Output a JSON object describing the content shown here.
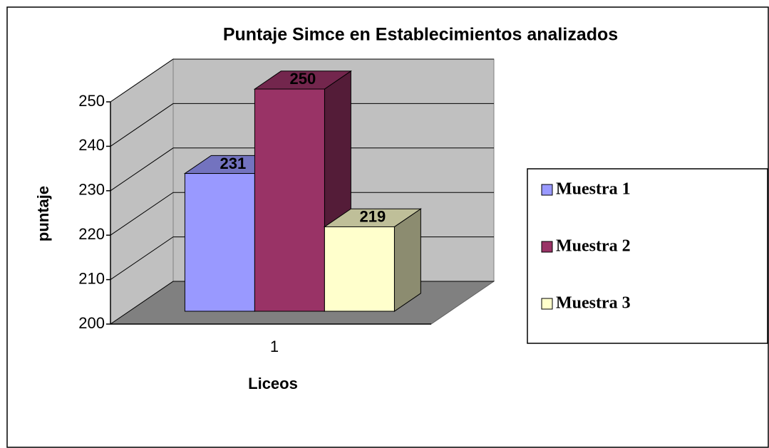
{
  "chart_data": {
    "type": "bar3d",
    "title": "Puntaje Simce en Establecimientos analizados",
    "xlabel": "Liceos",
    "ylabel": "puntaje",
    "categories": [
      "1"
    ],
    "series": [
      {
        "name": "Muestra 1",
        "color": "#9999ff",
        "values": [
          231
        ]
      },
      {
        "name": "Muestra 2",
        "color": "#993366",
        "values": [
          250
        ]
      },
      {
        "name": "Muestra 3",
        "color": "#ffffcc",
        "values": [
          219
        ]
      }
    ],
    "ylim": [
      200,
      250
    ],
    "yticks": [
      200,
      210,
      220,
      230,
      240,
      250
    ],
    "grid": true,
    "legend": "right",
    "value_labels_shown": true
  }
}
